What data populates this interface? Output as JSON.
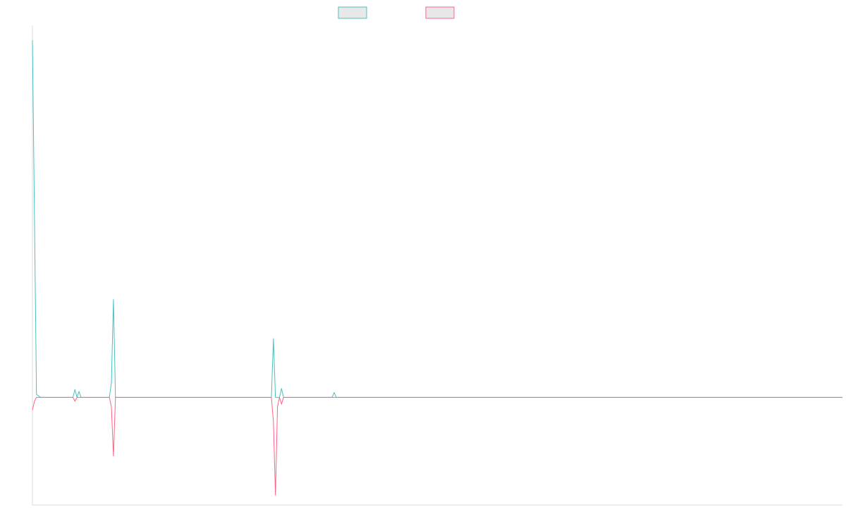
{
  "chart_data": {
    "type": "line",
    "title": "",
    "xlabel": "",
    "ylabel": "",
    "grid": false,
    "legend_position": "top-center",
    "x_count": 200,
    "ylim": [
      -1.1,
      3.8
    ],
    "series": [
      {
        "name": "",
        "color": "#4bc0c0",
        "fill": "#e8e8e8",
        "points": [
          [
            0,
            3.65
          ],
          [
            1,
            0.03
          ],
          [
            2,
            0.0
          ],
          [
            10,
            0.0
          ],
          [
            10.5,
            0.08
          ],
          [
            11,
            0.0
          ],
          [
            11.5,
            0.06
          ],
          [
            12,
            0.0
          ],
          [
            19,
            0.0
          ],
          [
            19.5,
            0.15
          ],
          [
            20,
            1.0
          ],
          [
            20.5,
            0.0
          ],
          [
            21,
            0.0
          ],
          [
            59,
            0.0
          ],
          [
            59.5,
            0.6
          ],
          [
            60,
            0.0
          ],
          [
            61,
            0.0
          ],
          [
            61.5,
            0.09
          ],
          [
            62,
            0.0
          ],
          [
            74,
            0.0
          ],
          [
            74.5,
            0.05
          ],
          [
            75,
            0.0
          ],
          [
            200,
            0.0
          ]
        ]
      },
      {
        "name": "",
        "color": "#ff6384",
        "fill": "#e8e8e8",
        "points": [
          [
            0,
            -0.13
          ],
          [
            0.5,
            -0.04
          ],
          [
            1,
            0.0
          ],
          [
            10,
            0.0
          ],
          [
            10.5,
            -0.04
          ],
          [
            11,
            0.0
          ],
          [
            19,
            0.0
          ],
          [
            19.5,
            -0.1
          ],
          [
            20,
            -0.6
          ],
          [
            20.5,
            0.0
          ],
          [
            21,
            0.0
          ],
          [
            59,
            0.0
          ],
          [
            59.5,
            -0.25
          ],
          [
            60,
            -1.0
          ],
          [
            60.5,
            -0.1
          ],
          [
            61,
            0.0
          ],
          [
            61.5,
            -0.07
          ],
          [
            62,
            0.0
          ],
          [
            200,
            0.0
          ]
        ]
      }
    ]
  }
}
